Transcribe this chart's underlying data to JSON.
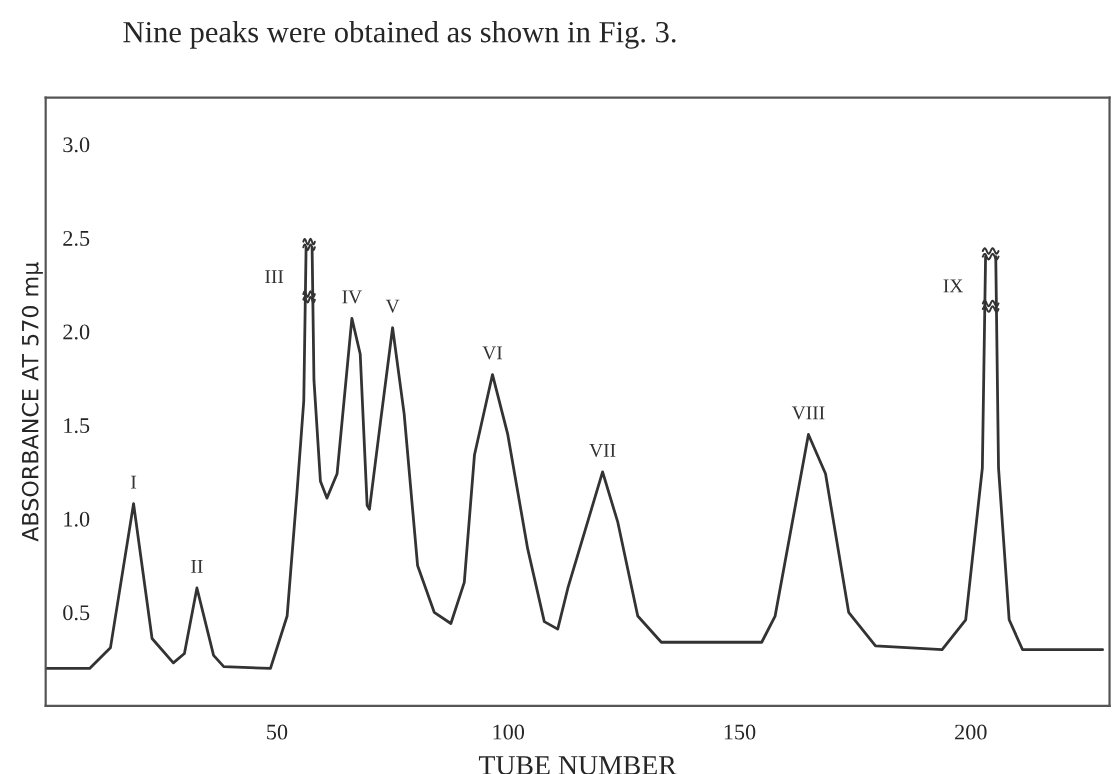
{
  "chart_data": {
    "type": "line",
    "xlabel": "TUBE NUMBER",
    "ylabel": "ABSORBANCE AT 570 mμ",
    "xlim": [
      0,
      230
    ],
    "xticks": [
      50,
      100,
      150,
      200
    ],
    "ylim": [
      0,
      3.25
    ],
    "yticks": [
      0.5,
      {
        "value": 1,
        "label": "1.0"
      },
      1.5,
      {
        "value": 2,
        "label": "2.0"
      },
      2.5,
      {
        "value": 3,
        "label": "3.0"
      }
    ],
    "grid": false,
    "legend": false,
    "marker": "none",
    "line_style": "solid",
    "annotations": [
      "Nine peaks were obtained as shown in Fig. 3.",
      {
        "text": "I",
        "x": 19,
        "y": 1.08
      },
      {
        "text": "II",
        "x": 32.7,
        "y": 0.63
      },
      {
        "text": "III",
        "x": 56.3,
        "y": 2.45
      },
      {
        "text": "IV",
        "x": 66.2,
        "y": 2.07
      },
      {
        "text": "V",
        "x": 75,
        "y": 2.02
      },
      {
        "text": "VI",
        "x": 96.6,
        "y": 1.77
      },
      {
        "text": "VII",
        "x": 120.4,
        "y": 1.25
      },
      {
        "text": "VIII",
        "x": 164.9,
        "y": 1.45
      },
      {
        "text": "IX",
        "x": 203.2,
        "y": 2.4
      }
    ],
    "series": [
      {
        "color": "#333333",
        "x": [
          0,
          9.5,
          14,
          19,
          23,
          27.6,
          30,
          32.7,
          36.3,
          38.5,
          48.6,
          52.2,
          54.3,
          55.8,
          56.3,
          56.9,
          57.6,
          58,
          59.4,
          60.8,
          63,
          66.2,
          68,
          69.5,
          70,
          72.4,
          75,
          77.5,
          80.4,
          84,
          87.6,
          90.5,
          92.7,
          96.6,
          99.9,
          104.2,
          107.8,
          110.7,
          112.9,
          120.4,
          123.7,
          128,
          133.1,
          154.8,
          157.7,
          164.9,
          168.6,
          173.6,
          179.4,
          193.8,
          198.9,
          202.5,
          203.2,
          204.3,
          205.4,
          206,
          208.3,
          211.2,
          228.5
        ],
        "values": [
          0.2,
          0.2,
          0.31,
          1.08,
          0.36,
          0.23,
          0.28,
          0.63,
          0.27,
          0.21,
          0.2,
          0.48,
          1.13,
          1.63,
          2.45,
          null,
          2.45,
          1.74,
          1.2,
          1.11,
          1.24,
          2.07,
          1.88,
          1.07,
          1.05,
          1.52,
          2.02,
          1.56,
          0.75,
          0.5,
          0.44,
          0.66,
          1.34,
          1.77,
          1.45,
          0.84,
          0.45,
          0.41,
          0.63,
          1.25,
          0.98,
          0.48,
          0.34,
          0.34,
          0.48,
          1.45,
          1.24,
          0.5,
          0.32,
          0.3,
          0.46,
          1.27,
          2.4,
          null,
          2.4,
          1.27,
          0.46,
          0.3,
          0.3
        ]
      }
    ]
  }
}
